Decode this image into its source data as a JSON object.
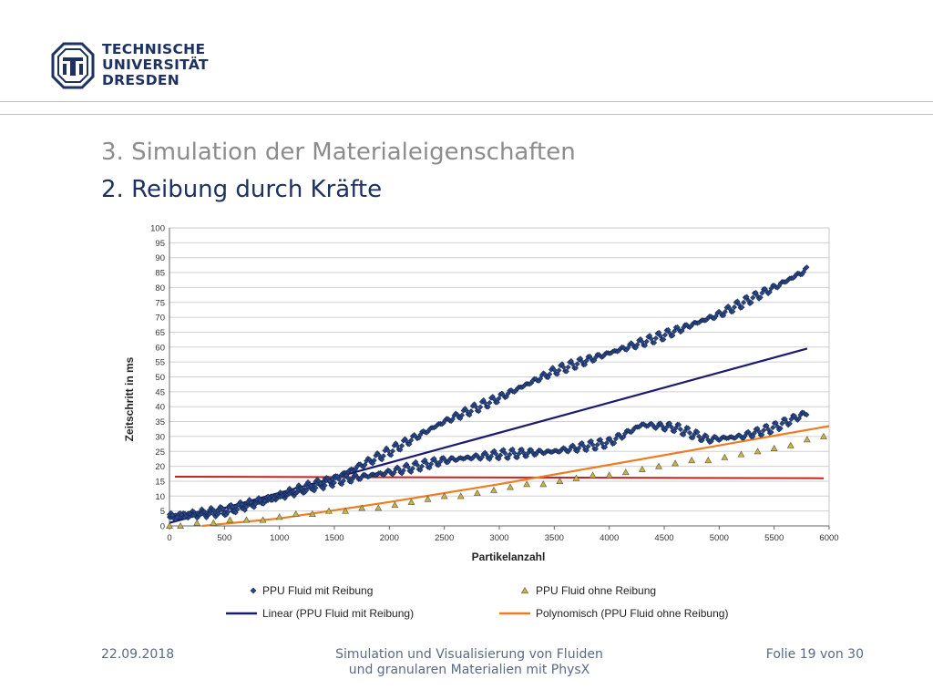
{
  "header": {
    "logo_lines": [
      "TECHNISCHE",
      "UNIVERSITÄT",
      "DRESDEN"
    ]
  },
  "slide": {
    "title": "3. Simulation der Materialeigenschaften",
    "subtitle": "2. Reibung durch Kräfte"
  },
  "footer": {
    "date": "22.09.2018",
    "center_line1": "Simulation und Visualisierung von Fluiden",
    "center_line2": "und granularen Materialien mit PhysX",
    "page": "Folie 19 von 30"
  },
  "colors": {
    "brand": "#1d3262",
    "series_mit": "#2a4a8c",
    "series_ohne": "#c8b43c",
    "trend_linear": "#1a1a6e",
    "trend_poly": "#ee7d22",
    "hline": "#cc1f1f",
    "grid": "#d0d0d0"
  },
  "chart_data": {
    "type": "scatter",
    "xlabel": "Partikelanzahl",
    "ylabel": "Zeitschritt in ms",
    "xlim": [
      0,
      6000
    ],
    "ylim": [
      0,
      100
    ],
    "x_ticks": [
      0,
      500,
      1000,
      1500,
      2000,
      2500,
      3000,
      3500,
      4000,
      4500,
      5000,
      5500,
      6000
    ],
    "y_ticks": [
      0,
      5,
      10,
      15,
      20,
      25,
      30,
      35,
      40,
      45,
      50,
      55,
      60,
      65,
      70,
      75,
      80,
      85,
      90,
      95,
      100
    ],
    "grid": "horizontal",
    "legend_position": "bottom",
    "series": [
      {
        "name": "PPU Fluid mit Reibung",
        "marker": "diamond",
        "upper_band": {
          "x": [
            0,
            500,
            1000,
            1500,
            2000,
            2500,
            3000,
            3500,
            4000,
            4500,
            5000,
            5500,
            5800
          ],
          "y": [
            3,
            5,
            10,
            16,
            25,
            35,
            43,
            52,
            58,
            64,
            71,
            80,
            86
          ]
        },
        "lower_band": {
          "x": [
            0,
            500,
            1000,
            1500,
            2000,
            2500,
            3000,
            3500,
            4000,
            4300,
            4600,
            4900,
            5200,
            5500,
            5800
          ],
          "y": [
            3,
            5,
            10,
            15,
            18,
            22,
            24,
            25,
            28,
            34,
            33,
            29,
            30,
            33,
            38
          ]
        }
      },
      {
        "name": "PPU Fluid ohne Reibung",
        "marker": "triangle",
        "x": [
          0,
          100,
          250,
          400,
          550,
          700,
          850,
          1000,
          1150,
          1300,
          1450,
          1600,
          1750,
          1900,
          2050,
          2200,
          2350,
          2500,
          2650,
          2800,
          2950,
          3100,
          3250,
          3400,
          3550,
          3700,
          3850,
          4000,
          4150,
          4300,
          4450,
          4600,
          4750,
          4900,
          5050,
          5200,
          5350,
          5500,
          5650,
          5800,
          5950
        ],
        "y": [
          0,
          0,
          1,
          1,
          2,
          2,
          2,
          3,
          4,
          4,
          5,
          5,
          6,
          6,
          7,
          8,
          9,
          10,
          10,
          11,
          12,
          13,
          14,
          14,
          15,
          16,
          17,
          17,
          18,
          19,
          20,
          21,
          22,
          22,
          23,
          24,
          25,
          26,
          27,
          29,
          30
        ]
      },
      {
        "name": "Linear (PPU Fluid mit Reibung)",
        "type": "line",
        "x": [
          0,
          5800
        ],
        "y": [
          1,
          59.5
        ]
      },
      {
        "name": "Polynomisch (PPU Fluid ohne Reibung)",
        "type": "line",
        "x": [
          300,
          1000,
          2000,
          3000,
          4000,
          5000,
          6000
        ],
        "y": [
          0,
          2.5,
          8,
          14,
          20.5,
          27,
          33.5
        ]
      },
      {
        "name": "",
        "type": "hline",
        "x": [
          50,
          5950
        ],
        "y": [
          16.5,
          16
        ]
      }
    ]
  }
}
